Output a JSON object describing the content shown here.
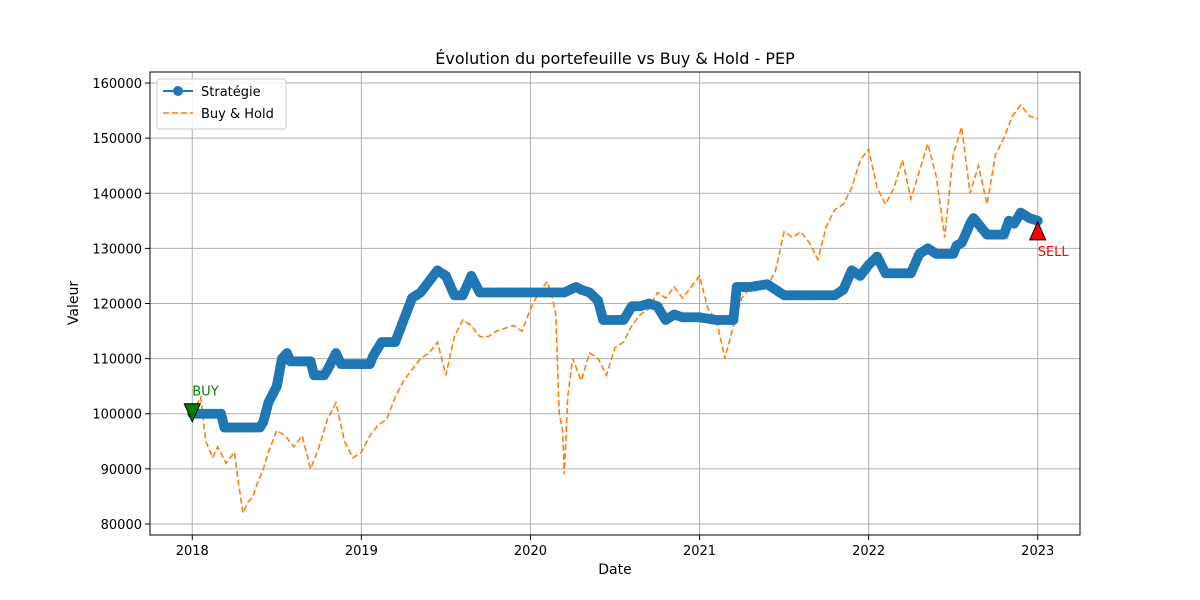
{
  "chart_data": {
    "type": "line",
    "title": "Évolution du portefeuille vs Buy & Hold - PEP",
    "xlabel": "Date",
    "ylabel": "Valeur",
    "xlim": [
      2017.75,
      2023.25
    ],
    "ylim": [
      78000,
      162000
    ],
    "x_ticks": [
      2018,
      2019,
      2020,
      2021,
      2022,
      2023
    ],
    "x_tick_labels": [
      "2018",
      "2019",
      "2020",
      "2021",
      "2022",
      "2023"
    ],
    "y_ticks": [
      80000,
      90000,
      100000,
      110000,
      120000,
      130000,
      140000,
      150000,
      160000
    ],
    "y_tick_labels": [
      "80000",
      "90000",
      "100000",
      "110000",
      "120000",
      "130000",
      "140000",
      "150000",
      "160000"
    ],
    "grid": true,
    "legend_position": "top-left",
    "legend": [
      "Stratégie",
      "Buy & Hold"
    ],
    "colors": {
      "strategie": "#1f77b4",
      "buyhold": "#ff7f0e",
      "buy": "#008000",
      "sell": "#ff0000",
      "grid": "#b0b0b0"
    },
    "series": [
      {
        "name": "Stratégie",
        "style": "solid-markers",
        "x": [
          2018.0,
          2018.1,
          2018.17,
          2018.19,
          2018.22,
          2018.4,
          2018.42,
          2018.45,
          2018.5,
          2018.53,
          2018.56,
          2018.58,
          2018.62,
          2018.68,
          2018.7,
          2018.72,
          2018.78,
          2018.8,
          2018.85,
          2018.88,
          2018.92,
          2018.96,
          2019.05,
          2019.07,
          2019.12,
          2019.15,
          2019.2,
          2019.25,
          2019.3,
          2019.35,
          2019.4,
          2019.45,
          2019.5,
          2019.55,
          2019.6,
          2019.65,
          2019.7,
          2019.8,
          2020.0,
          2020.2,
          2020.27,
          2020.3,
          2020.35,
          2020.4,
          2020.43,
          2020.55,
          2020.6,
          2020.65,
          2020.7,
          2020.75,
          2020.8,
          2020.85,
          2020.9,
          2021.0,
          2021.1,
          2021.2,
          2021.22,
          2021.3,
          2021.4,
          2021.5,
          2021.6,
          2021.7,
          2021.8,
          2021.85,
          2021.9,
          2021.95,
          2022.0,
          2022.05,
          2022.1,
          2022.2,
          2022.25,
          2022.3,
          2022.35,
          2022.4,
          2022.5,
          2022.52,
          2022.55,
          2022.58,
          2022.6,
          2022.62,
          2022.7,
          2022.78,
          2022.8,
          2022.83,
          2022.86,
          2022.9,
          2022.95,
          2023.0
        ],
        "y": [
          100000,
          100000,
          100000,
          97500,
          97500,
          97500,
          98500,
          102000,
          105000,
          110000,
          111000,
          109500,
          109500,
          109500,
          109500,
          107000,
          107000,
          108000,
          111000,
          109000,
          109000,
          109000,
          109000,
          110500,
          113000,
          113000,
          113000,
          117000,
          121000,
          122000,
          124000,
          126000,
          125000,
          121500,
          121500,
          125000,
          122000,
          122000,
          122000,
          122000,
          123000,
          122500,
          122000,
          120500,
          117000,
          117000,
          119500,
          119500,
          120000,
          119500,
          117000,
          118000,
          117500,
          117500,
          117000,
          117000,
          123000,
          123000,
          123500,
          121500,
          121500,
          121500,
          121500,
          122500,
          126000,
          125000,
          127000,
          128500,
          125500,
          125500,
          125500,
          129000,
          130000,
          129000,
          129000,
          130500,
          131000,
          133000,
          134500,
          135500,
          132500,
          132500,
          132500,
          135000,
          134500,
          136500,
          135500,
          135000
        ]
      },
      {
        "name": "Buy & Hold",
        "style": "dashed",
        "x": [
          2018.0,
          2018.05,
          2018.08,
          2018.12,
          2018.15,
          2018.2,
          2018.25,
          2018.28,
          2018.3,
          2018.33,
          2018.36,
          2018.38,
          2018.42,
          2018.45,
          2018.5,
          2018.55,
          2018.6,
          2018.65,
          2018.7,
          2018.75,
          2018.8,
          2018.85,
          2018.9,
          2018.95,
          2019.0,
          2019.05,
          2019.1,
          2019.15,
          2019.2,
          2019.25,
          2019.3,
          2019.35,
          2019.4,
          2019.45,
          2019.5,
          2019.55,
          2019.6,
          2019.65,
          2019.7,
          2019.75,
          2019.8,
          2019.85,
          2019.9,
          2019.95,
          2020.0,
          2020.05,
          2020.1,
          2020.13,
          2020.15,
          2020.17,
          2020.19,
          2020.2,
          2020.22,
          2020.25,
          2020.3,
          2020.35,
          2020.4,
          2020.45,
          2020.5,
          2020.55,
          2020.6,
          2020.65,
          2020.7,
          2020.75,
          2020.8,
          2020.85,
          2020.9,
          2020.95,
          2021.0,
          2021.05,
          2021.1,
          2021.15,
          2021.2,
          2021.25,
          2021.3,
          2021.35,
          2021.4,
          2021.45,
          2021.5,
          2021.55,
          2021.6,
          2021.65,
          2021.7,
          2021.75,
          2021.8,
          2021.85,
          2021.9,
          2021.95,
          2022.0,
          2022.05,
          2022.1,
          2022.15,
          2022.2,
          2022.25,
          2022.3,
          2022.35,
          2022.4,
          2022.45,
          2022.5,
          2022.55,
          2022.6,
          2022.65,
          2022.7,
          2022.75,
          2022.8,
          2022.85,
          2022.9,
          2022.95,
          2023.0
        ],
        "y": [
          100000,
          103000,
          95000,
          92000,
          94000,
          91000,
          93000,
          86000,
          82000,
          84000,
          85000,
          87000,
          90000,
          93000,
          97000,
          96000,
          94000,
          96000,
          90000,
          94000,
          99000,
          102000,
          95000,
          92000,
          93000,
          96000,
          98000,
          99000,
          103000,
          106000,
          108000,
          110000,
          111000,
          113000,
          107000,
          114000,
          117000,
          116000,
          114000,
          114000,
          115000,
          115500,
          116000,
          115000,
          119000,
          122000,
          124000,
          121000,
          118000,
          100000,
          97000,
          89000,
          103000,
          110000,
          106000,
          111000,
          110000,
          107000,
          112000,
          113000,
          116000,
          118000,
          119000,
          122000,
          121000,
          123000,
          121000,
          123000,
          125000,
          119000,
          117000,
          110000,
          116000,
          121000,
          123000,
          124000,
          123000,
          126000,
          133000,
          132000,
          133000,
          131000,
          128000,
          134000,
          137000,
          138000,
          141000,
          146000,
          148000,
          141000,
          138000,
          141000,
          146000,
          139000,
          144000,
          149000,
          143000,
          132000,
          147000,
          152000,
          140000,
          145000,
          138000,
          147000,
          150000,
          154000,
          156000,
          154000,
          153500
        ]
      }
    ],
    "annotations": [
      {
        "text": "BUY",
        "x": 2018.0,
        "y": 100000,
        "marker": "down-triangle"
      },
      {
        "text": "SELL",
        "x": 2023.0,
        "y": 133000,
        "marker": "up-triangle"
      }
    ]
  }
}
